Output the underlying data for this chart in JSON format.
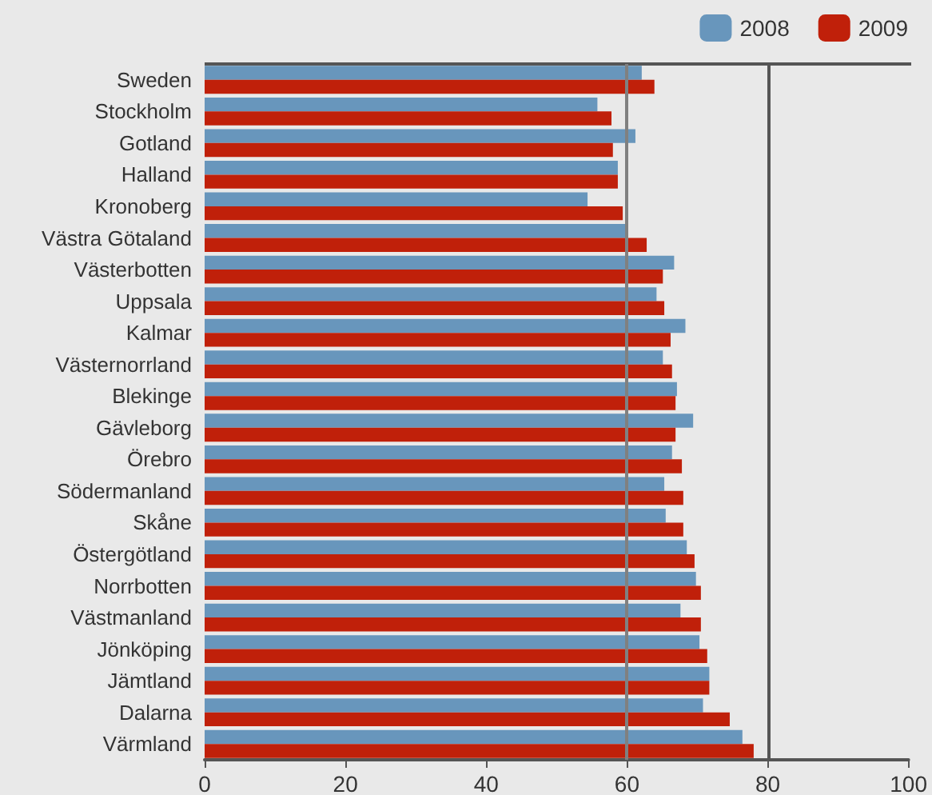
{
  "chart_data": {
    "type": "bar",
    "orientation": "horizontal",
    "categories": [
      "Sweden",
      "Stockholm",
      "Gotland",
      "Halland",
      "Kronoberg",
      "Västra Götaland",
      "Västerbotten",
      "Uppsala",
      "Kalmar",
      "Västernorrland",
      "Blekinge",
      "Gävleborg",
      "Örebro",
      "Södermanland",
      "Skåne",
      "Östergötland",
      "Norrbotten",
      "Västmanland",
      "Jönköping",
      "Jämtland",
      "Dalarna",
      "Värmland"
    ],
    "series": [
      {
        "name": "2008",
        "color": "#6896bc",
        "values": [
          62.1,
          55.8,
          61.2,
          58.7,
          54.4,
          59.9,
          66.7,
          64.2,
          68.3,
          65.1,
          67.1,
          69.4,
          66.4,
          65.3,
          65.5,
          68.5,
          69.8,
          67.6,
          70.3,
          71.7,
          70.8,
          76.4
        ]
      },
      {
        "name": "2009",
        "color": "#c0200a",
        "values": [
          63.9,
          57.8,
          58.0,
          58.7,
          59.4,
          62.8,
          65.1,
          65.3,
          66.2,
          66.4,
          66.9,
          66.9,
          67.8,
          68.0,
          68.0,
          69.6,
          70.5,
          70.5,
          71.4,
          71.7,
          74.6,
          78.0
        ]
      }
    ],
    "xlim": [
      0,
      100
    ],
    "xticks": [
      0,
      20,
      40,
      60,
      80,
      100
    ],
    "grid": false,
    "legend": "top right",
    "ref_lines": [
      {
        "axis": "x",
        "value": 60,
        "color": "#808080"
      },
      {
        "axis": "x",
        "value": 80,
        "color": "#555555"
      }
    ]
  }
}
